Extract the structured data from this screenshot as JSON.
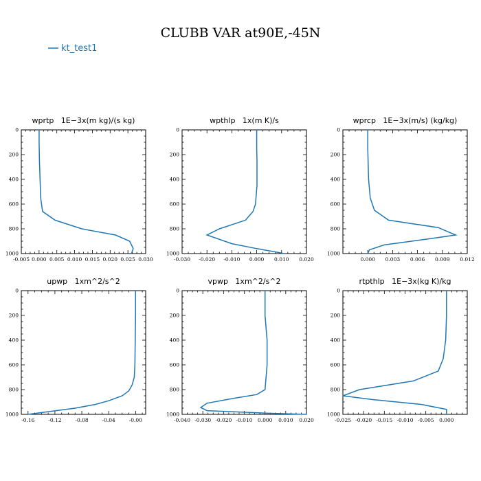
{
  "title": "CLUBB VAR at90E,-45N",
  "legend": {
    "label": "kt_test1",
    "color": "#1f77b4"
  },
  "chart_data": [
    {
      "type": "line",
      "title": "wprtp   1E−3x(m kg)/(s kg)",
      "xlim": [
        -0.005,
        0.03
      ],
      "xticks": [
        -0.005,
        0.0,
        0.005,
        0.01,
        0.015,
        0.02,
        0.025,
        0.03
      ],
      "xtick_labels": [
        "-0.005",
        "0.000",
        "0.005",
        "0.010",
        "0.015",
        "0.020",
        "0.025",
        "0.030"
      ],
      "ylim": [
        0,
        1000
      ],
      "yticks": [
        0,
        200,
        400,
        600,
        800,
        1000
      ],
      "ytick_labels": [
        "0",
        "200",
        "400",
        "600",
        "800",
        "1000"
      ],
      "series": [
        {
          "name": "kt_test1",
          "x": [
            0.0,
            0.0,
            0.0001,
            0.0003,
            0.0005,
            0.001,
            0.0045,
            0.012,
            0.0215,
            0.0255,
            0.0265,
            0.026
          ],
          "y": [
            0,
            100,
            250,
            420,
            560,
            660,
            730,
            800,
            850,
            900,
            960,
            1000
          ]
        }
      ]
    },
    {
      "type": "line",
      "title": "wpthlp   1x(m K)/s",
      "xlim": [
        -0.03,
        0.02
      ],
      "xticks": [
        -0.03,
        -0.02,
        -0.01,
        0.0,
        0.01,
        0.02
      ],
      "xtick_labels": [
        "-0.030",
        "-0.020",
        "-0.010",
        "0.000",
        "0.010",
        "0.020"
      ],
      "ylim": [
        0,
        1000
      ],
      "yticks": [
        0,
        200,
        400,
        600,
        800,
        1000
      ],
      "ytick_labels": [
        "0",
        "200",
        "400",
        "600",
        "800",
        "1000"
      ],
      "series": [
        {
          "name": "kt_test1",
          "x": [
            0.0,
            0.0,
            0.0001,
            0.0001,
            -0.0005,
            -0.0015,
            -0.0045,
            -0.015,
            -0.02,
            -0.01,
            0.0,
            0.0085,
            0.011
          ],
          "y": [
            0,
            150,
            250,
            450,
            600,
            660,
            730,
            800,
            850,
            920,
            960,
            990,
            1000
          ]
        }
      ]
    },
    {
      "type": "line",
      "title": "wprcp   1E−3x(m/s) (kg/kg)",
      "xlim": [
        -0.003,
        0.012
      ],
      "xticks": [
        0.0,
        0.003,
        0.006,
        0.009,
        0.012
      ],
      "xtick_labels": [
        "0.000",
        "0.003",
        "0.006",
        "0.009",
        "0.012"
      ],
      "ylim": [
        0,
        1000
      ],
      "yticks": [
        0,
        200,
        400,
        600,
        800,
        1000
      ],
      "ytick_labels": [
        "0",
        "200",
        "400",
        "600",
        "800",
        "1000"
      ],
      "series": [
        {
          "name": "kt_test1",
          "x": [
            0.0,
            0.0,
            0.0001,
            0.0003,
            0.0008,
            0.0025,
            0.0085,
            0.0106,
            0.0075,
            0.002,
            0.0002,
            0.0
          ],
          "y": [
            0,
            150,
            400,
            550,
            650,
            730,
            790,
            850,
            880,
            930,
            970,
            1000
          ]
        }
      ]
    },
    {
      "type": "line",
      "title": "upwp   1xm^2/s^2",
      "xlim": [
        -0.17,
        0.015
      ],
      "xticks": [
        -0.16,
        -0.12,
        -0.08,
        -0.04,
        0.0
      ],
      "xtick_labels": [
        "-0.16",
        "-0.12",
        "-0.08",
        "-0.04",
        "-0.00"
      ],
      "ylim": [
        0,
        1000
      ],
      "yticks": [
        0,
        200,
        400,
        600,
        800,
        1000
      ],
      "ytick_labels": [
        "0",
        "200",
        "400",
        "600",
        "800",
        "1000"
      ],
      "series": [
        {
          "name": "kt_test1",
          "x": [
            0.0,
            0.0,
            -0.0005,
            -0.001,
            -0.002,
            -0.005,
            -0.01,
            -0.02,
            -0.04,
            -0.06,
            -0.09,
            -0.16
          ],
          "y": [
            0,
            200,
            400,
            600,
            700,
            760,
            810,
            850,
            890,
            920,
            950,
            1000
          ]
        }
      ]
    },
    {
      "type": "line",
      "title": "vpwp   1xm^2/s^2",
      "xlim": [
        -0.04,
        0.02
      ],
      "xticks": [
        -0.04,
        -0.03,
        -0.02,
        -0.01,
        0.0,
        0.01,
        0.02
      ],
      "xtick_labels": [
        "-0.040",
        "-0.030",
        "-0.020",
        "-0.010",
        "0.000",
        "0.010",
        "0.020"
      ],
      "ylim": [
        0,
        1000
      ],
      "yticks": [
        0,
        200,
        400,
        600,
        800,
        1000
      ],
      "ytick_labels": [
        "0",
        "200",
        "400",
        "600",
        "800",
        "1000"
      ],
      "series": [
        {
          "name": "kt_test1",
          "x": [
            0.0,
            0.0,
            0.001,
            0.001,
            0.0,
            -0.004,
            -0.015,
            -0.028,
            -0.031,
            -0.028,
            0.0,
            0.02
          ],
          "y": [
            0,
            200,
            400,
            600,
            800,
            840,
            870,
            910,
            945,
            970,
            990,
            1000
          ]
        }
      ]
    },
    {
      "type": "line",
      "title": "rtpthlp   1E−3x(kg K)/kg",
      "xlim": [
        -0.025,
        0.005
      ],
      "xticks": [
        -0.025,
        -0.02,
        -0.015,
        -0.01,
        -0.005,
        0.0
      ],
      "xtick_labels": [
        "-0.025",
        "-0.020",
        "-0.015",
        "-0.010",
        "-0.005",
        "0.000"
      ],
      "ylim": [
        0,
        1000
      ],
      "yticks": [
        0,
        200,
        400,
        600,
        800,
        1000
      ],
      "ytick_labels": [
        "0",
        "200",
        "400",
        "600",
        "800",
        "1000"
      ],
      "series": [
        {
          "name": "kt_test1",
          "x": [
            0.0,
            0.0,
            -0.0002,
            -0.0008,
            -0.002,
            -0.008,
            -0.021,
            -0.025,
            -0.018,
            -0.006,
            0.0,
            0.0
          ],
          "y": [
            0,
            200,
            400,
            550,
            650,
            730,
            800,
            850,
            880,
            920,
            960,
            1000
          ]
        }
      ]
    }
  ]
}
